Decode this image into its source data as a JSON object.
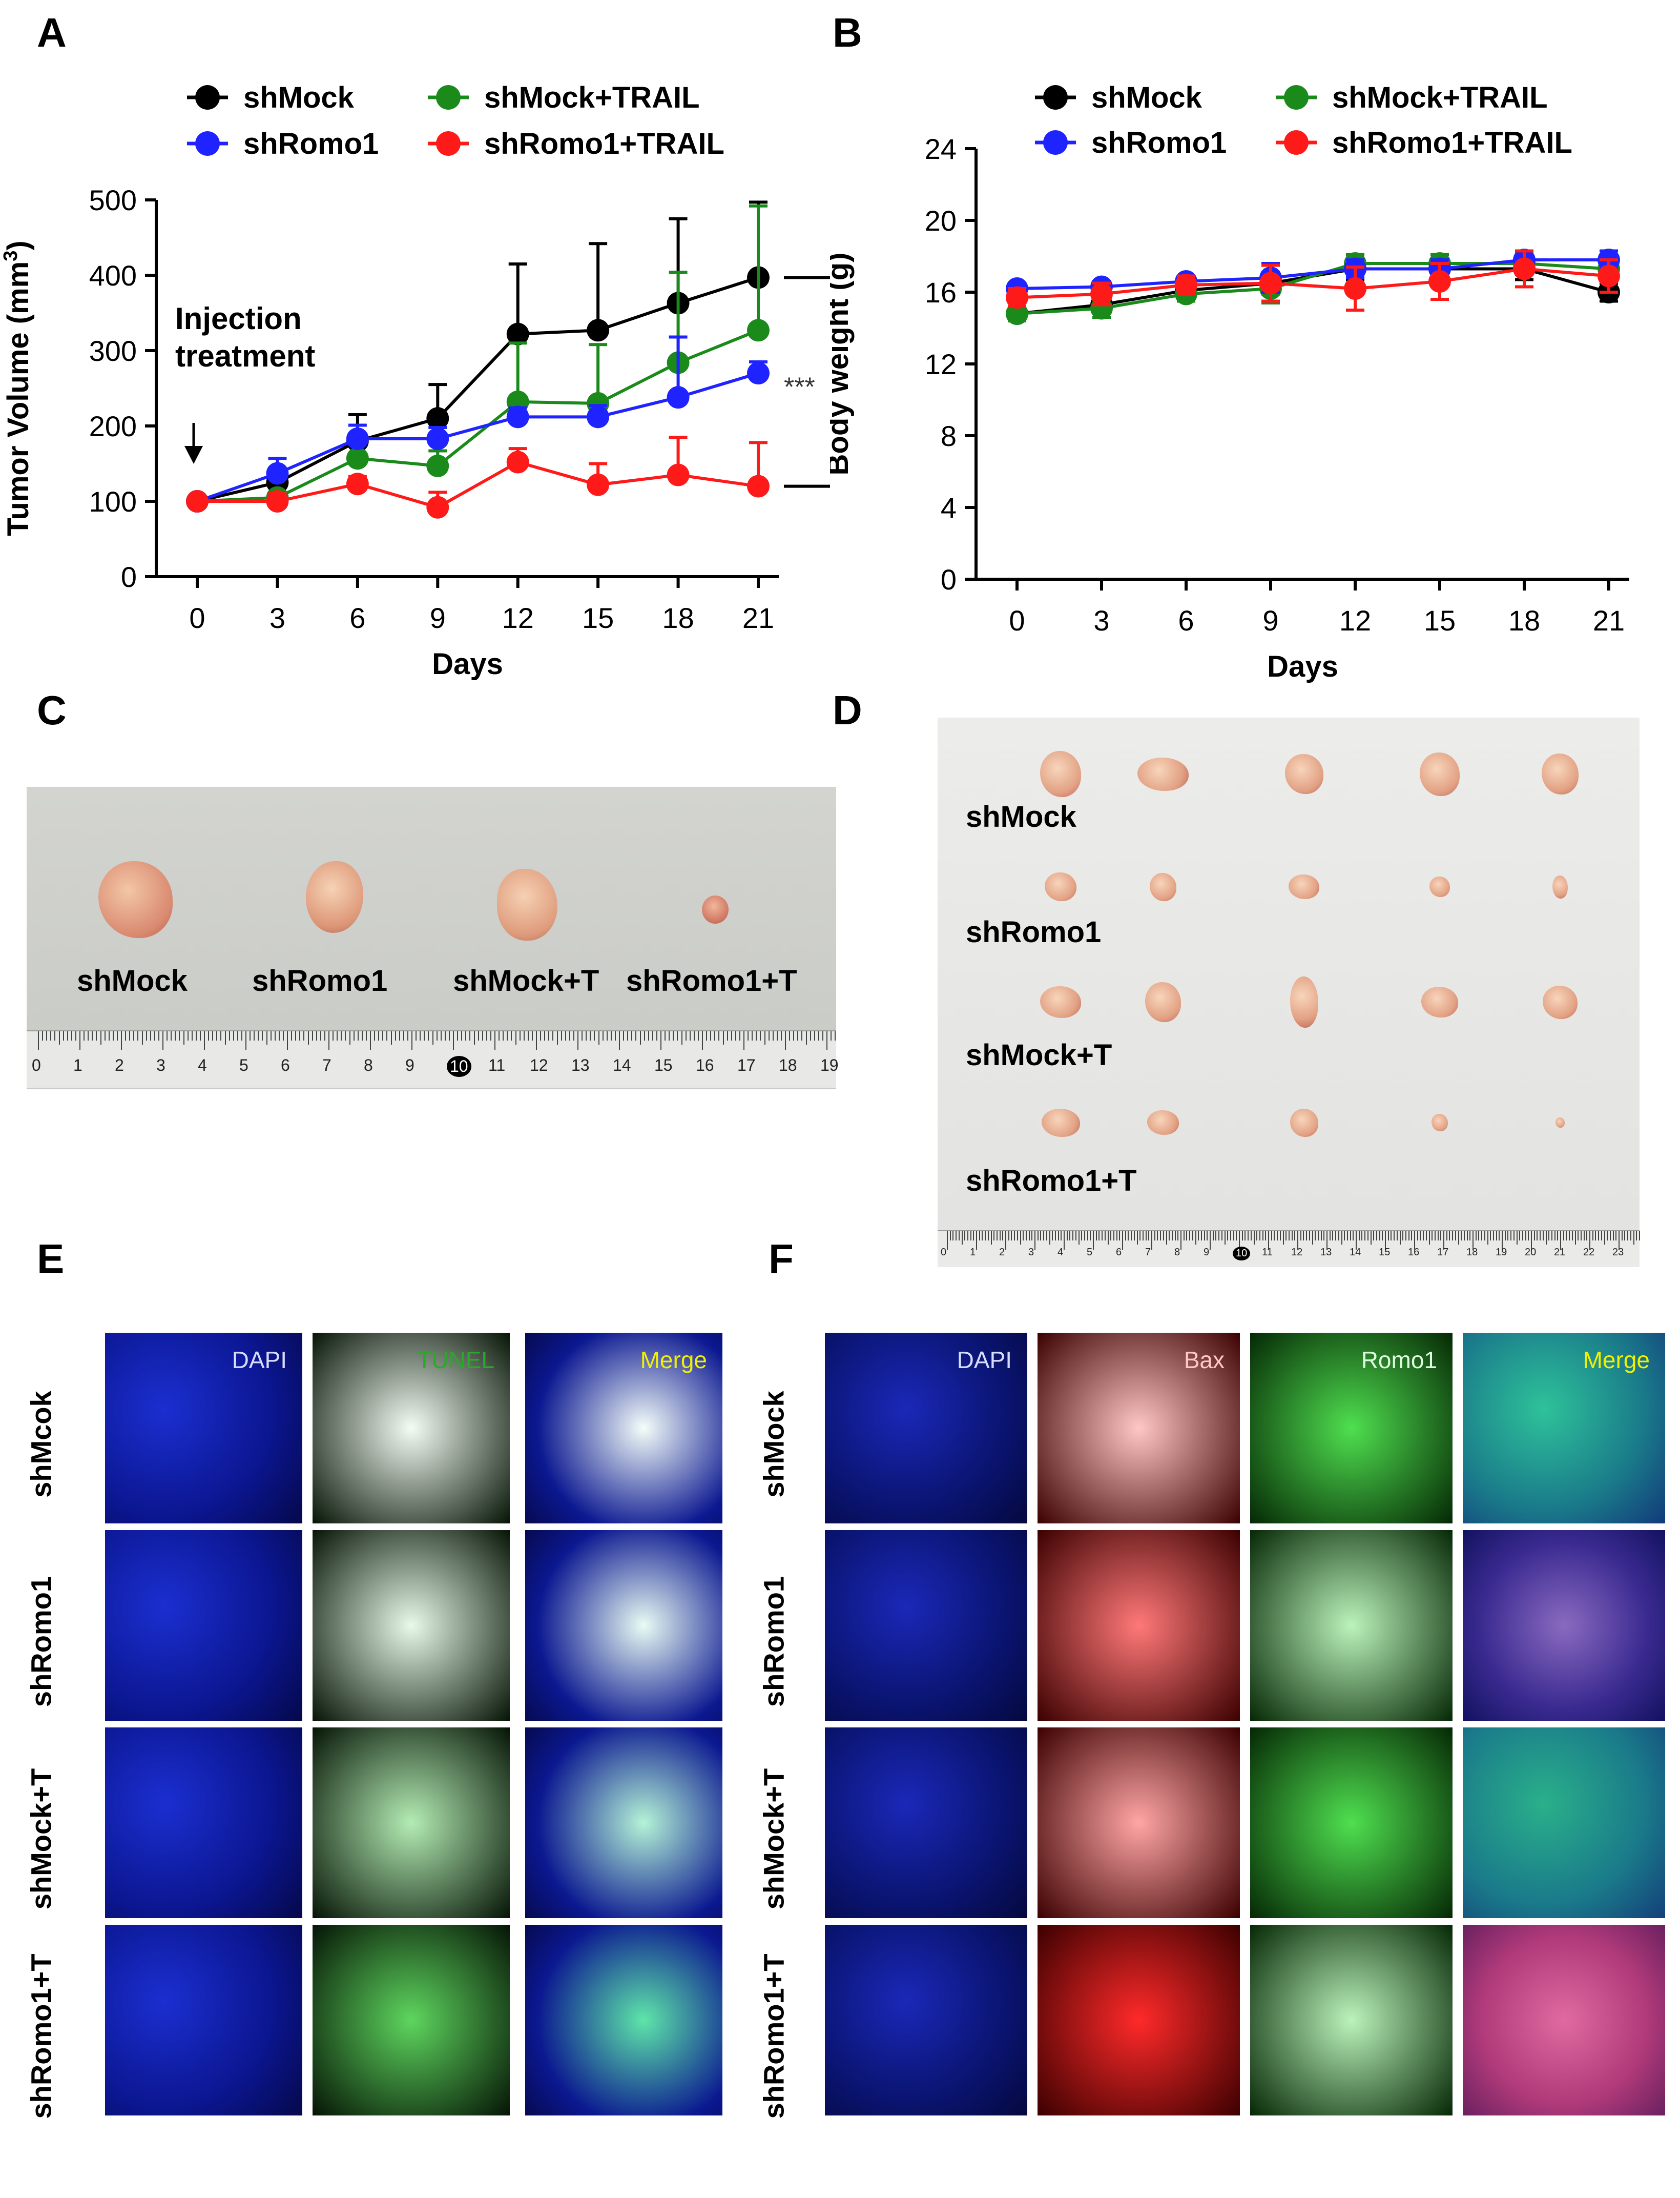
{
  "panel_labels": {
    "A": "A",
    "B": "B",
    "C": "C",
    "D": "D",
    "E": "E",
    "F": "F"
  },
  "colors": {
    "shMock": "#000000",
    "shRomo1": "#1f23ff",
    "shMockTRAIL": "#1a8a1a",
    "shRomo1TRAIL": "#ff1a1a"
  },
  "chart_data": [
    {
      "type": "line",
      "panel": "A",
      "title": "",
      "xlabel": "Days",
      "ylabel": "Tumor Volume (mm",
      "ylabel_sup": "3",
      "ylabel_end": ")",
      "x": [
        0,
        3,
        6,
        9,
        12,
        15,
        18,
        21
      ],
      "xticks": [
        "0",
        "3",
        "6",
        "9",
        "12",
        "15",
        "18",
        "21"
      ],
      "ylim": [
        0,
        500
      ],
      "yticks": [
        "0",
        "100",
        "200",
        "300",
        "400",
        "500"
      ],
      "annotation": [
        "Injection",
        "treatment"
      ],
      "significance": "***",
      "series": [
        {
          "name": "shMock",
          "values": [
            100,
            125,
            180,
            210,
            322,
            327,
            363,
            397
          ],
          "errors": [
            0,
            0,
            35,
            45,
            93,
            115,
            112,
            100
          ]
        },
        {
          "name": "shMock+TRAIL",
          "values": [
            100,
            105,
            157,
            147,
            232,
            230,
            284,
            327
          ],
          "errors": [
            0,
            0,
            22,
            20,
            78,
            78,
            120,
            165
          ]
        },
        {
          "name": "shRomo1",
          "values": [
            100,
            137,
            183,
            183,
            212,
            212,
            238,
            270
          ],
          "errors": [
            0,
            20,
            18,
            15,
            12,
            15,
            80,
            15
          ]
        },
        {
          "name": "shRomo1+TRAIL",
          "values": [
            100,
            100,
            123,
            92,
            152,
            122,
            135,
            120
          ],
          "errors": [
            0,
            10,
            10,
            20,
            18,
            28,
            50,
            58
          ]
        }
      ]
    },
    {
      "type": "line",
      "panel": "B",
      "title": "",
      "xlabel": "Days",
      "ylabel": "Body weight (g)",
      "x": [
        0,
        3,
        6,
        9,
        12,
        15,
        18,
        21
      ],
      "xticks": [
        "0",
        "3",
        "6",
        "9",
        "12",
        "15",
        "18",
        "21"
      ],
      "ylim": [
        0,
        24
      ],
      "yticks": [
        "0",
        "4",
        "8",
        "12",
        "16",
        "20",
        "24"
      ],
      "series": [
        {
          "name": "shMock",
          "values": [
            14.8,
            15.3,
            16.1,
            16.5,
            17.3,
            17.3,
            17.3,
            16.0
          ],
          "errors": [
            0.3,
            0.5,
            0.4,
            0.6,
            0.6,
            0.4,
            0.6,
            0.5
          ]
        },
        {
          "name": "shMock+TRAIL",
          "values": [
            14.8,
            15.1,
            15.9,
            16.2,
            17.6,
            17.6,
            17.6,
            17.3
          ],
          "errors": [
            0.4,
            0.5,
            0.4,
            0.8,
            0.5,
            0.5,
            0.6,
            0.5
          ]
        },
        {
          "name": "shRomo1",
          "values": [
            16.2,
            16.3,
            16.6,
            16.8,
            17.3,
            17.3,
            17.8,
            17.8
          ],
          "errors": [
            0.3,
            0.3,
            0.3,
            0.8,
            0.5,
            0.5,
            0.5,
            0.5
          ]
        },
        {
          "name": "shRomo1+TRAIL",
          "values": [
            15.7,
            15.9,
            16.4,
            16.5,
            16.2,
            16.6,
            17.3,
            16.9
          ],
          "errors": [
            0.5,
            0.6,
            0.5,
            1.0,
            1.2,
            1.0,
            1.0,
            0.9
          ]
        }
      ]
    }
  ],
  "panel_c": {
    "labels": [
      "shMock",
      "shRomo1",
      "shMock+T",
      "shRomo1+T"
    ],
    "ruler_numbers": [
      "0",
      "1",
      "2",
      "3",
      "4",
      "5",
      "6",
      "7",
      "8",
      "9",
      "10",
      "11",
      "12",
      "13",
      "14",
      "15",
      "16",
      "17",
      "18",
      "19"
    ]
  },
  "panel_d": {
    "row_labels": [
      "shMock",
      "shRomo1",
      "shMock+T",
      "shRomo1+T"
    ],
    "ruler_numbers": [
      "0",
      "1",
      "2",
      "3",
      "4",
      "5",
      "6",
      "7",
      "8",
      "9",
      "10",
      "11",
      "12",
      "13",
      "14",
      "15",
      "16",
      "17",
      "18",
      "19",
      "20",
      "21",
      "22",
      "23"
    ]
  },
  "panel_e": {
    "row_labels": [
      "shMcok",
      "shRomo1",
      "shMock+T",
      "shRomo1+T"
    ],
    "col_labels": [
      "DAPI",
      "TUNEL",
      "Merge"
    ]
  },
  "panel_f": {
    "row_labels": [
      "shMock",
      "shRomo1",
      "shMock+T",
      "shRomo1+T"
    ],
    "col_labels": [
      "DAPI",
      "Bax",
      "Romo1",
      "Merge"
    ]
  }
}
